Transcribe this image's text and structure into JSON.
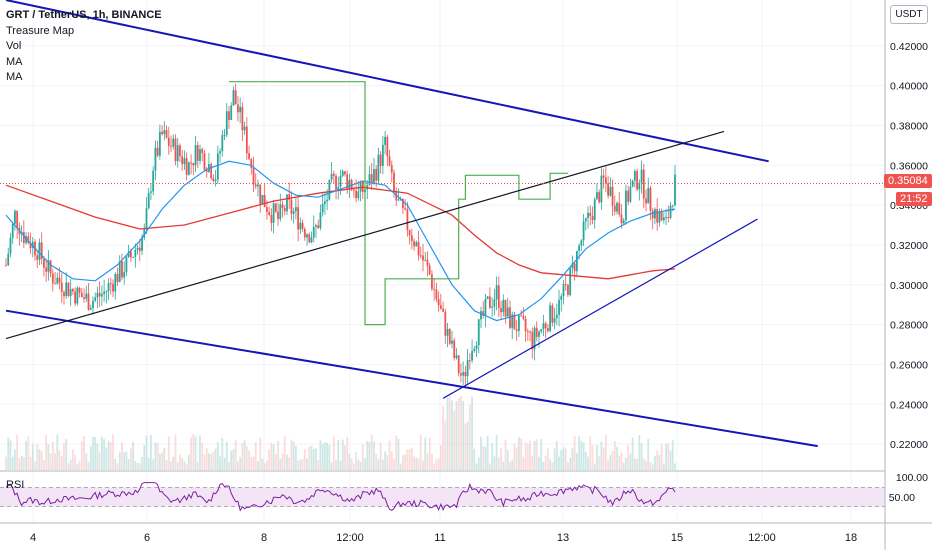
{
  "header": {
    "title": "GRT / TetherUS, 1h, BINANCE",
    "indicators": [
      "Treasure Map",
      "Vol",
      "MA",
      "MA"
    ]
  },
  "currency_button": "USDT",
  "price_badge": {
    "price": "0.35084",
    "countdown": "21:52"
  },
  "rsi": {
    "label": "RSI",
    "ticks": [
      "100.00",
      "50.00"
    ],
    "upper": 70,
    "lower": 30
  },
  "colors": {
    "up": "#26a69a",
    "down": "#ef5350",
    "trend_blue": "#1515b8",
    "black_line": "#131722",
    "ma_fast": "#2196f3",
    "ma_slow": "#e53935",
    "treasure": "#4caf50",
    "rsi": "#7b1fa2",
    "rsi_band": "#f3e5f5"
  },
  "chart_data": {
    "type": "candlestick",
    "title": "GRT / TetherUS, 1h, BINANCE",
    "y_axis": {
      "ticks": [
        0.42,
        0.4,
        0.38,
        0.36,
        0.34,
        0.32,
        0.3,
        0.28,
        0.26,
        0.24,
        0.22
      ],
      "tick_labels": [
        "0.42000",
        "0.40000",
        "0.38000",
        "0.36000",
        "0.34000",
        "0.32000",
        "0.30000",
        "0.28000",
        "0.26000",
        "0.24000",
        "0.22000"
      ],
      "ylim": [
        0.207,
        0.443
      ]
    },
    "x_axis": {
      "tick_labels": [
        "4",
        "6",
        "8",
        "12:00",
        "11",
        "13",
        "15",
        "12:00",
        "18"
      ]
    },
    "last_price": 0.35084,
    "price_keypoints": [
      [
        0,
        0.31
      ],
      [
        4,
        0.335
      ],
      [
        8,
        0.325
      ],
      [
        14,
        0.318
      ],
      [
        20,
        0.305
      ],
      [
        26,
        0.3
      ],
      [
        32,
        0.295
      ],
      [
        38,
        0.292
      ],
      [
        44,
        0.296
      ],
      [
        50,
        0.305
      ],
      [
        54,
        0.31
      ],
      [
        58,
        0.318
      ],
      [
        62,
        0.325
      ],
      [
        66,
        0.36
      ],
      [
        70,
        0.375
      ],
      [
        74,
        0.37
      ],
      [
        78,
        0.365
      ],
      [
        82,
        0.36
      ],
      [
        86,
        0.368
      ],
      [
        90,
        0.362
      ],
      [
        94,
        0.355
      ],
      [
        98,
        0.38
      ],
      [
        102,
        0.395
      ],
      [
        106,
        0.38
      ],
      [
        110,
        0.36
      ],
      [
        114,
        0.345
      ],
      [
        118,
        0.338
      ],
      [
        122,
        0.333
      ],
      [
        126,
        0.34
      ],
      [
        130,
        0.335
      ],
      [
        134,
        0.328
      ],
      [
        138,
        0.325
      ],
      [
        142,
        0.338
      ],
      [
        146,
        0.35
      ],
      [
        150,
        0.355
      ],
      [
        154,
        0.352
      ],
      [
        158,
        0.345
      ],
      [
        162,
        0.35
      ],
      [
        166,
        0.358
      ],
      [
        170,
        0.37
      ],
      [
        174,
        0.345
      ],
      [
        178,
        0.335
      ],
      [
        182,
        0.325
      ],
      [
        186,
        0.315
      ],
      [
        190,
        0.305
      ],
      [
        194,
        0.29
      ],
      [
        198,
        0.275
      ],
      [
        202,
        0.26
      ],
      [
        205,
        0.252
      ],
      [
        208,
        0.268
      ],
      [
        212,
        0.278
      ],
      [
        216,
        0.29
      ],
      [
        220,
        0.296
      ],
      [
        224,
        0.285
      ],
      [
        228,
        0.28
      ],
      [
        232,
        0.278
      ],
      [
        236,
        0.272
      ],
      [
        240,
        0.278
      ],
      [
        244,
        0.284
      ],
      [
        248,
        0.29
      ],
      [
        252,
        0.3
      ],
      [
        256,
        0.315
      ],
      [
        260,
        0.33
      ],
      [
        264,
        0.34
      ],
      [
        268,
        0.352
      ],
      [
        272,
        0.345
      ],
      [
        276,
        0.335
      ],
      [
        280,
        0.348
      ],
      [
        284,
        0.355
      ],
      [
        288,
        0.343
      ],
      [
        292,
        0.335
      ],
      [
        296,
        0.33
      ],
      [
        300,
        0.351
      ]
    ],
    "treasure_map_path": [
      [
        100,
        0.402
      ],
      [
        161,
        0.402
      ],
      [
        161,
        0.28
      ],
      [
        170,
        0.28
      ],
      [
        170,
        0.303
      ],
      [
        203,
        0.303
      ],
      [
        203,
        0.343
      ],
      [
        206,
        0.343
      ],
      [
        206,
        0.355
      ],
      [
        230,
        0.355
      ],
      [
        230,
        0.343
      ],
      [
        244,
        0.343
      ],
      [
        244,
        0.356
      ],
      [
        252,
        0.356
      ]
    ],
    "ma_fast_points": [
      [
        0,
        0.335
      ],
      [
        10,
        0.322
      ],
      [
        20,
        0.31
      ],
      [
        30,
        0.303
      ],
      [
        40,
        0.302
      ],
      [
        50,
        0.31
      ],
      [
        60,
        0.322
      ],
      [
        70,
        0.338
      ],
      [
        80,
        0.35
      ],
      [
        90,
        0.358
      ],
      [
        100,
        0.362
      ],
      [
        110,
        0.36
      ],
      [
        120,
        0.351
      ],
      [
        130,
        0.345
      ],
      [
        140,
        0.344
      ],
      [
        150,
        0.348
      ],
      [
        160,
        0.352
      ],
      [
        170,
        0.35
      ],
      [
        180,
        0.34
      ],
      [
        190,
        0.32
      ],
      [
        200,
        0.3
      ],
      [
        210,
        0.287
      ],
      [
        220,
        0.282
      ],
      [
        230,
        0.285
      ],
      [
        240,
        0.293
      ],
      [
        250,
        0.305
      ],
      [
        260,
        0.318
      ],
      [
        270,
        0.326
      ],
      [
        280,
        0.332
      ],
      [
        290,
        0.336
      ],
      [
        300,
        0.338
      ]
    ],
    "ma_slow_points": [
      [
        0,
        0.35
      ],
      [
        20,
        0.342
      ],
      [
        40,
        0.334
      ],
      [
        60,
        0.328
      ],
      [
        80,
        0.33
      ],
      [
        100,
        0.336
      ],
      [
        120,
        0.342
      ],
      [
        140,
        0.346
      ],
      [
        160,
        0.349
      ],
      [
        180,
        0.346
      ],
      [
        200,
        0.335
      ],
      [
        210,
        0.325
      ],
      [
        220,
        0.316
      ],
      [
        230,
        0.31
      ],
      [
        240,
        0.306
      ],
      [
        250,
        0.305
      ],
      [
        260,
        0.304
      ],
      [
        270,
        0.303
      ],
      [
        280,
        0.305
      ],
      [
        290,
        0.307
      ],
      [
        300,
        0.308
      ]
    ],
    "trend_lines": [
      {
        "name": "upper-channel",
        "from": [
          0,
          0.443
        ],
        "to": [
          342,
          0.362
        ]
      },
      {
        "name": "lower-channel",
        "from": [
          0,
          0.287
        ],
        "to": [
          364,
          0.219
        ]
      },
      {
        "name": "black-trend",
        "from": [
          0,
          0.273
        ],
        "to": [
          322,
          0.377
        ]
      },
      {
        "name": "support",
        "from": [
          196,
          0.243
        ],
        "to": [
          337,
          0.333
        ]
      }
    ]
  }
}
